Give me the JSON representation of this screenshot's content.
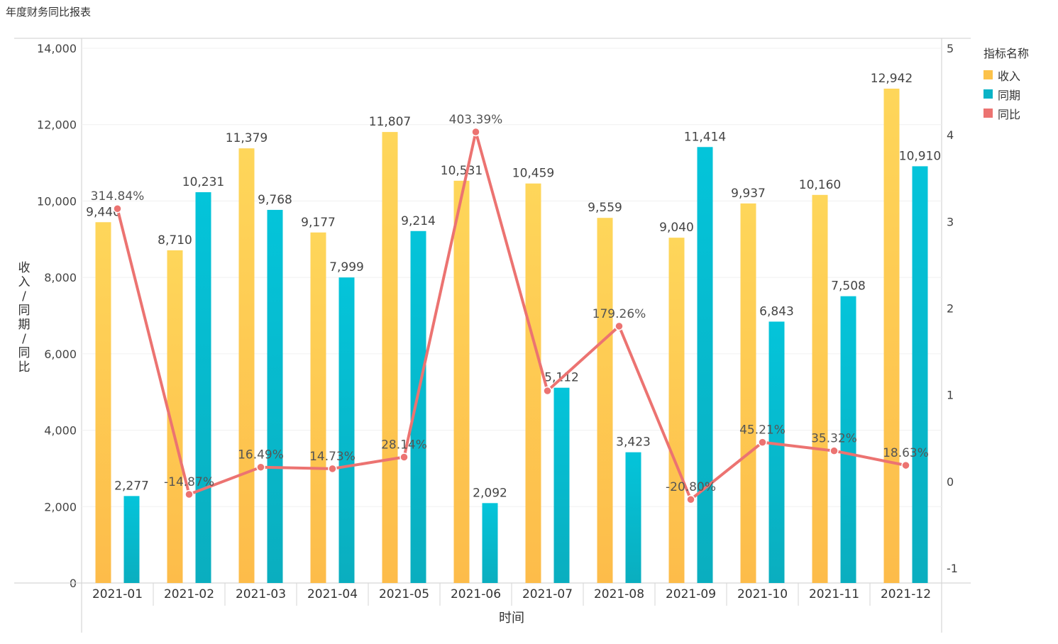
{
  "page_title": "年度财务同比报表",
  "chart_data": {
    "type": "bar",
    "title": "年度财务同比报表",
    "xlabel": "时间",
    "ylabel": "收入/同期/同比",
    "categories": [
      "2021-01",
      "2021-02",
      "2021-03",
      "2021-04",
      "2021-05",
      "2021-06",
      "2021-07",
      "2021-08",
      "2021-09",
      "2021-10",
      "2021-11",
      "2021-12"
    ],
    "series": [
      {
        "name": "收入",
        "type": "bar",
        "axis": "left",
        "color": "#fcc24a",
        "values": [
          9446,
          8710,
          11379,
          9177,
          11807,
          10531,
          10459,
          9559,
          9040,
          9937,
          10160,
          12942
        ],
        "labels": [
          "9,446",
          "8,710",
          "11,379",
          "9,177",
          "11,807",
          "10,531",
          "10,459",
          "9,559",
          "9,040",
          "9,937",
          "10,160",
          "12,942"
        ]
      },
      {
        "name": "同期",
        "type": "bar",
        "axis": "left",
        "color": "#0ab3c6",
        "values": [
          2277,
          10231,
          9768,
          7999,
          9214,
          2092,
          5112,
          3423,
          11414,
          6843,
          7508,
          10910
        ],
        "labels": [
          "2,277",
          "10,231",
          "9,768",
          "7,999",
          "9,214",
          "2,092",
          "5,112",
          "3,423",
          "11,414",
          "6,843",
          "7,508",
          "10,910"
        ]
      },
      {
        "name": "同比",
        "type": "line",
        "axis": "right",
        "color": "#ec7371",
        "values": [
          3.1484,
          -0.1487,
          0.1649,
          0.1473,
          0.2814,
          4.0339,
          1.046,
          1.7926,
          -0.208,
          0.4521,
          0.3532,
          0.1863
        ],
        "labels": [
          "314.84%",
          "-14.87%",
          "16.49%",
          "14.73%",
          "28.14%",
          "403.39%",
          "",
          "179.26%",
          "-20.80%",
          "45.21%",
          "35.32%",
          "18.63%"
        ]
      }
    ],
    "y_left": {
      "min": 0,
      "max": 14000,
      "ticks": [
        0,
        2000,
        4000,
        6000,
        8000,
        10000,
        12000,
        14000
      ],
      "tick_labels": [
        "0",
        "2,000",
        "4,000",
        "6,000",
        "8,000",
        "10,000",
        "12,000",
        "14,000"
      ]
    },
    "y_right": {
      "min": -1,
      "max": 5,
      "ticks": [
        -1,
        0,
        1,
        2,
        3,
        4,
        5
      ],
      "tick_labels": [
        "-1",
        "0",
        "1",
        "2",
        "3",
        "4",
        "5"
      ]
    },
    "legend": {
      "title": "指标名称",
      "position": "right"
    }
  }
}
